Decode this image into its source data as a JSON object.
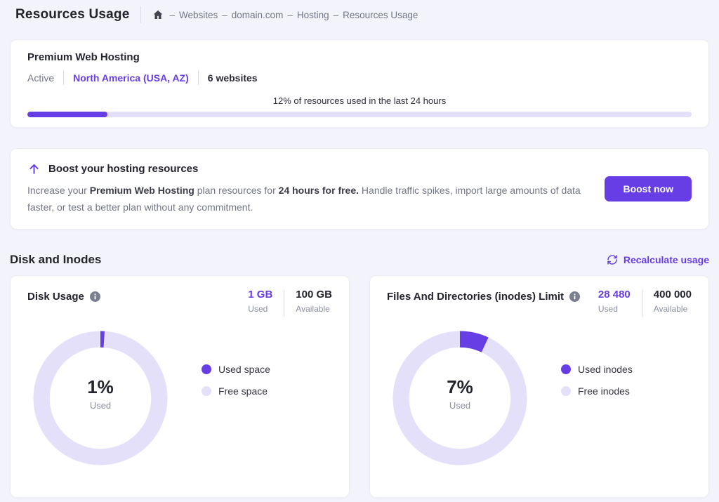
{
  "colors": {
    "primary": "#673de6",
    "primary_light": "#e5e0fa",
    "background": "#f2f3fb",
    "card": "#ffffff",
    "text_dark": "#23242d",
    "text_gray": "#727586"
  },
  "header": {
    "title": "Resources Usage",
    "breadcrumb_separator": "–",
    "breadcrumb": [
      "Websites",
      "domain.com",
      "Hosting",
      "Resources Usage"
    ]
  },
  "plan": {
    "name": "Premium Web Hosting",
    "status": "Active",
    "location": "North America (USA, AZ)",
    "websites": "6 websites",
    "usage_label": "12% of resources used in the last 24 hours",
    "usage_percent": 12
  },
  "boost": {
    "title": "Boost your hosting resources",
    "desc_p1": "Increase your ",
    "desc_b1": "Premium Web Hosting",
    "desc_p2": " plan resources for ",
    "desc_b2": "24 hours for free.",
    "desc_p3": " Handle traffic spikes, import large amounts of data faster, or test a better plan without any commitment.",
    "button": "Boost now"
  },
  "section": {
    "title": "Disk and Inodes",
    "action": "Recalculate usage"
  },
  "disk": {
    "title": "Disk Usage",
    "used_value": "1 GB",
    "used_label": "Used",
    "available_value": "100 GB",
    "available_label": "Available",
    "percent": 1,
    "center_value": "1%",
    "center_label": "Used",
    "legend_used": "Used space",
    "legend_free": "Free space"
  },
  "inodes": {
    "title": "Files And Directories (inodes) Limit",
    "used_value": "28 480",
    "used_label": "Used",
    "available_value": "400 000",
    "available_label": "Available",
    "percent": 7,
    "center_value": "7%",
    "center_label": "Used",
    "legend_used": "Used inodes",
    "legend_free": "Free inodes"
  },
  "chart_data": [
    {
      "type": "pie",
      "title": "Disk Usage",
      "categories": [
        "Used space",
        "Free space"
      ],
      "values": [
        1,
        99
      ],
      "center_label": "1% Used"
    },
    {
      "type": "pie",
      "title": "Files And Directories (inodes) Limit",
      "categories": [
        "Used inodes",
        "Free inodes"
      ],
      "values": [
        7,
        93
      ],
      "center_label": "7% Used"
    }
  ]
}
